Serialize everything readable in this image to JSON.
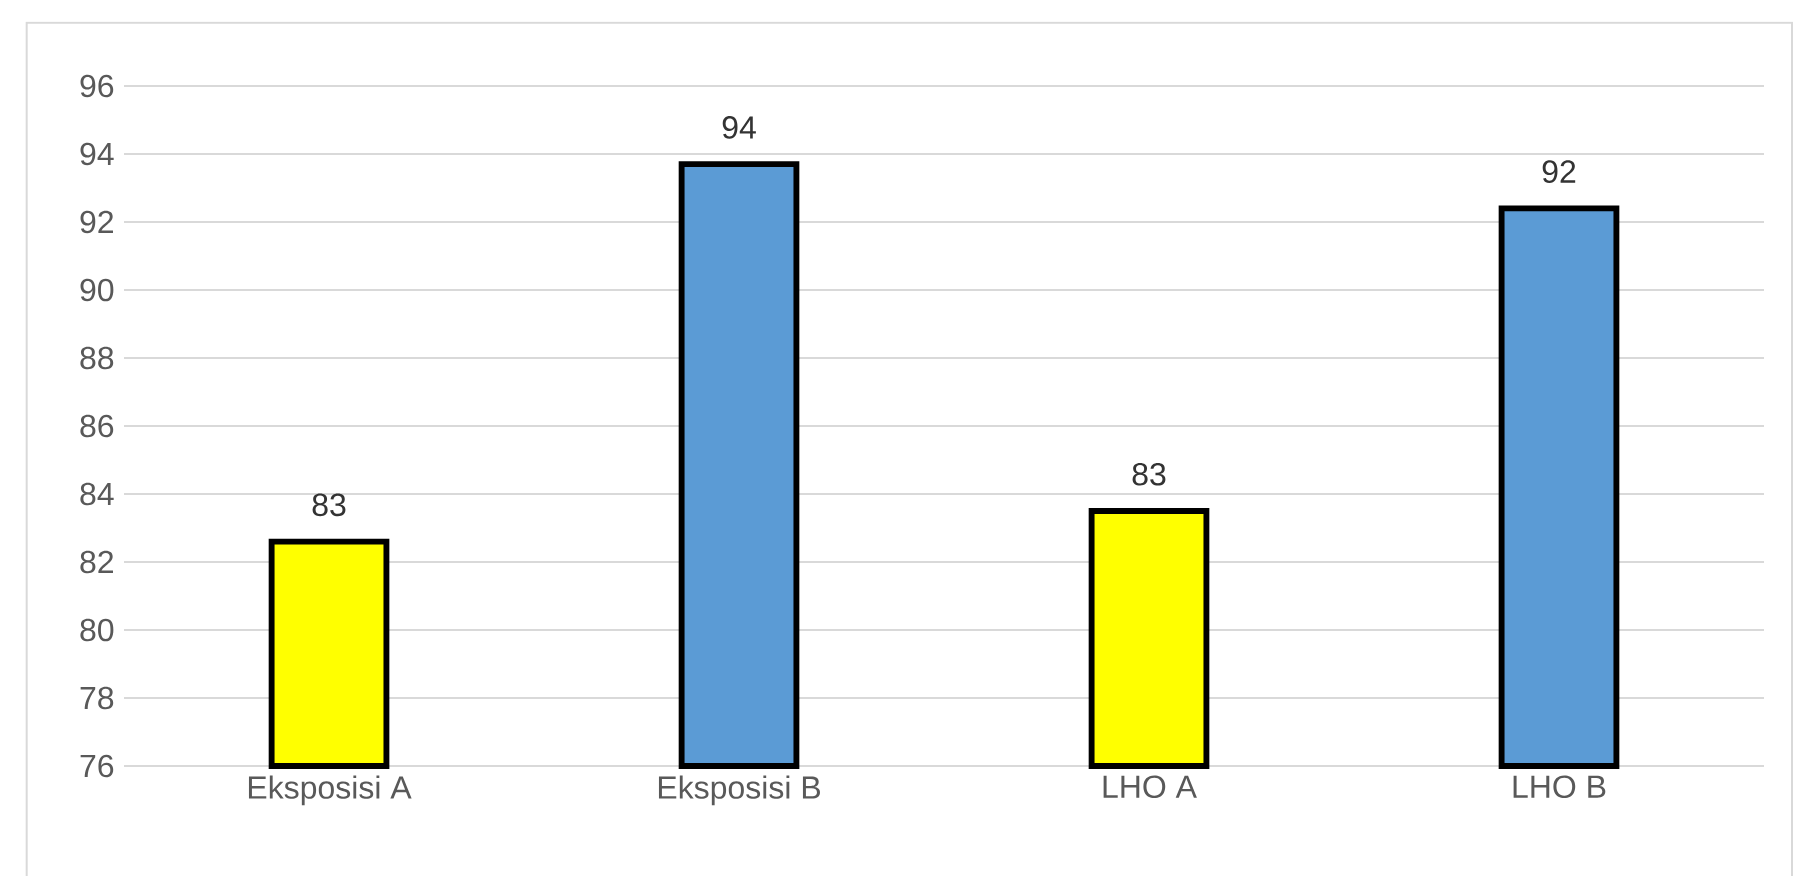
{
  "chart_data": {
    "type": "bar",
    "categories": [
      "Eksposisi A",
      "Eksposisi B",
      "LHO A",
      "LHO B"
    ],
    "values": [
      82.6,
      93.7,
      83.5,
      92.4
    ],
    "colors": [
      "#ffff00",
      "#5b9bd5",
      "#ffff00",
      "#5b9bd5"
    ],
    "value_labels": [
      "83",
      "94",
      "83",
      "92"
    ],
    "ylim": [
      76,
      96
    ],
    "yticks": [
      76,
      78,
      80,
      82,
      84,
      86,
      88,
      90,
      92,
      94,
      96
    ],
    "grid": "y"
  }
}
